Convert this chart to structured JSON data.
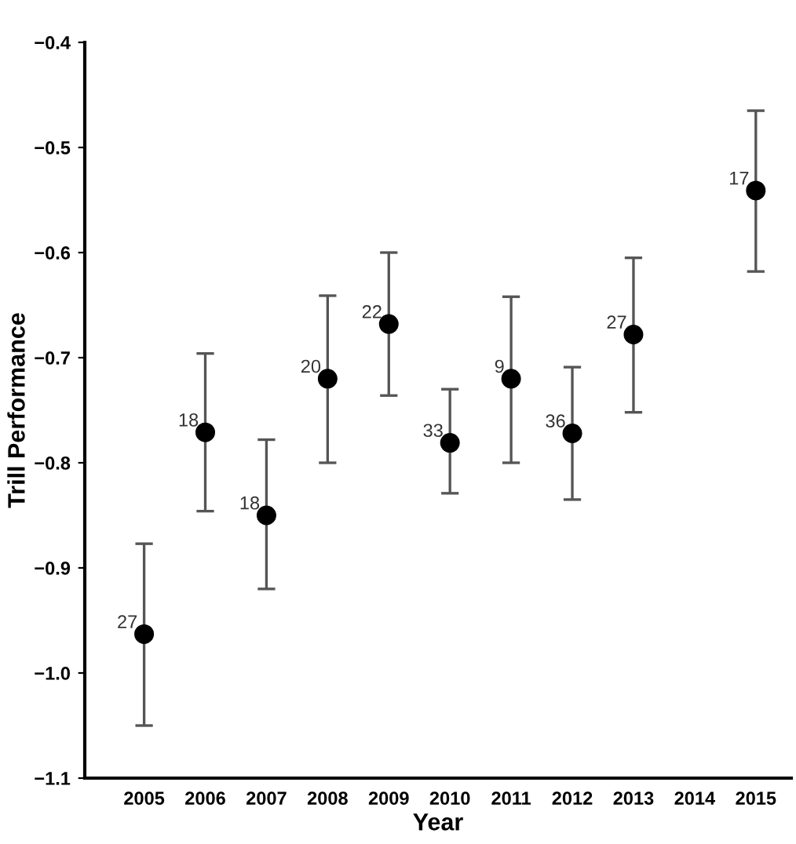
{
  "chart_data": {
    "type": "scatter",
    "xlabel": "Year",
    "ylabel": "Trill Performance",
    "x": [
      2005,
      2006,
      2007,
      2008,
      2009,
      2010,
      2011,
      2012,
      2013,
      2015
    ],
    "series": [
      {
        "color": "#000000",
        "values": [
          -0.963,
          -0.771,
          -0.85,
          -0.72,
          -0.668,
          -0.781,
          -0.72,
          -0.772,
          -0.678,
          -0.541
        ],
        "errors": [
          [
            -1.05,
            -0.877
          ],
          [
            -0.846,
            -0.696
          ],
          [
            -0.92,
            -0.778
          ],
          [
            -0.8,
            -0.641
          ],
          [
            -0.736,
            -0.6
          ],
          [
            -0.829,
            -0.73
          ],
          [
            -0.8,
            -0.642
          ],
          [
            -0.835,
            -0.709
          ],
          [
            -0.752,
            -0.605
          ],
          [
            -0.618,
            -0.465
          ]
        ]
      }
    ],
    "annotations": [
      {
        "text": "27",
        "x": 2005,
        "y": -0.963
      },
      {
        "text": "18",
        "x": 2006,
        "y": -0.771
      },
      {
        "text": "18",
        "x": 2007,
        "y": -0.85
      },
      {
        "text": "20",
        "x": 2008,
        "y": -0.72
      },
      {
        "text": "22",
        "x": 2009,
        "y": -0.668
      },
      {
        "text": "33",
        "x": 2010,
        "y": -0.781
      },
      {
        "text": "9",
        "x": 2011,
        "y": -0.72
      },
      {
        "text": "36",
        "x": 2012,
        "y": -0.772
      },
      {
        "text": "27",
        "x": 2013,
        "y": -0.678
      },
      {
        "text": "17",
        "x": 2015,
        "y": -0.541
      }
    ],
    "xlim": [
      2004.03,
      2015.58
    ],
    "xticks": [
      2005,
      2006,
      2007,
      2008,
      2009,
      2010,
      2011,
      2012,
      2013,
      2014,
      2015
    ],
    "ylim": [
      -1.1,
      -0.4
    ],
    "yticks": [
      {
        "value": -1.1,
        "label": "−1.1"
      },
      {
        "value": -1.0,
        "label": "−1.0"
      },
      {
        "value": -0.9,
        "label": "−0.9"
      },
      {
        "value": -0.8,
        "label": "−0.8"
      },
      {
        "value": -0.7,
        "label": "−0.7"
      },
      {
        "value": -0.6,
        "label": "−0.6"
      },
      {
        "value": -0.5,
        "label": "−0.5"
      },
      {
        "value": -0.4,
        "label": "−0.4"
      }
    ],
    "marker": "circle",
    "grid": false
  }
}
